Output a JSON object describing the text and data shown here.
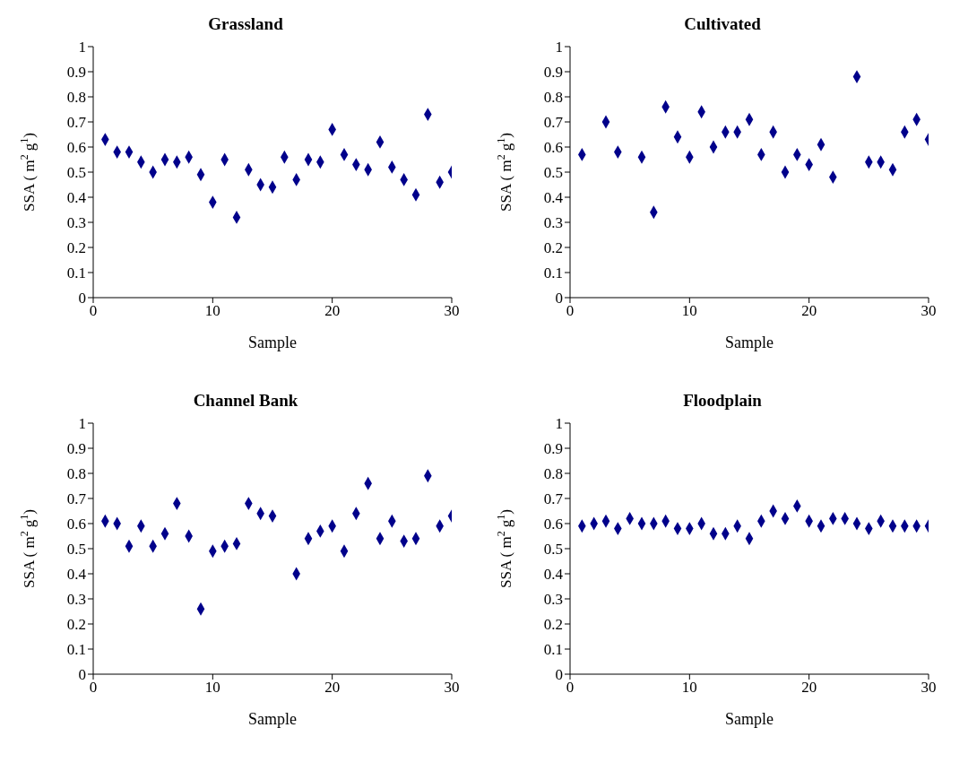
{
  "chart_data": [
    {
      "type": "scatter",
      "title": "Grassland",
      "xlabel": "Sample",
      "ylabel": "SSA ( m$^{2}$ g$^{1}$)",
      "color": "#00008b",
      "marker": "diamond",
      "x": [
        1,
        2,
        3,
        4,
        5,
        6,
        7,
        8,
        9,
        10,
        11,
        12,
        13,
        14,
        15,
        16,
        17,
        18,
        19,
        20,
        21,
        22,
        23,
        24,
        25,
        26,
        27,
        28,
        29,
        30
      ],
      "values": [
        0.63,
        0.58,
        0.58,
        0.54,
        0.5,
        0.55,
        0.54,
        0.56,
        0.49,
        0.38,
        0.55,
        0.32,
        0.51,
        0.45,
        0.44,
        0.56,
        0.47,
        0.55,
        0.54,
        0.67,
        0.57,
        0.53,
        0.51,
        0.62,
        0.52,
        0.47,
        0.41,
        0.73,
        0.46,
        0.5
      ],
      "xlim": [
        0,
        30
      ],
      "xticks": [
        0,
        10,
        20,
        30
      ],
      "ylim": [
        0,
        1
      ],
      "yticks": [
        0,
        0.1,
        0.2,
        0.3,
        0.4,
        0.5,
        0.6,
        0.7,
        0.8,
        0.9,
        1
      ]
    },
    {
      "type": "scatter",
      "title": "Cultivated",
      "xlabel": "Sample",
      "ylabel": "SSA ( m$^{2}$ g$^{1}$)",
      "color": "#00008b",
      "marker": "diamond",
      "x": [
        1,
        3,
        4,
        6,
        7,
        8,
        9,
        10,
        11,
        12,
        13,
        14,
        15,
        16,
        17,
        18,
        19,
        20,
        21,
        22,
        24,
        25,
        26,
        27,
        28,
        29,
        30
      ],
      "values": [
        0.57,
        0.7,
        0.58,
        0.56,
        0.34,
        0.76,
        0.64,
        0.56,
        0.74,
        0.6,
        0.66,
        0.66,
        0.71,
        0.57,
        0.66,
        0.5,
        0.57,
        0.53,
        0.61,
        0.48,
        0.88,
        0.54,
        0.54,
        0.51,
        0.66,
        0.71,
        0.63
      ],
      "xlim": [
        0,
        30
      ],
      "xticks": [
        0,
        10,
        20,
        30
      ],
      "ylim": [
        0,
        1
      ],
      "yticks": [
        0,
        0.1,
        0.2,
        0.3,
        0.4,
        0.5,
        0.6,
        0.7,
        0.8,
        0.9,
        1
      ]
    },
    {
      "type": "scatter",
      "title": "Channel Bank",
      "xlabel": "Sample",
      "ylabel": "SSA ( m$^{2}$ g$^{1}$)",
      "color": "#00008b",
      "marker": "diamond",
      "x": [
        1,
        2,
        3,
        4,
        5,
        6,
        7,
        8,
        9,
        10,
        11,
        12,
        13,
        14,
        15,
        17,
        18,
        19,
        20,
        21,
        22,
        23,
        24,
        25,
        26,
        27,
        28,
        29,
        30
      ],
      "values": [
        0.61,
        0.6,
        0.51,
        0.59,
        0.51,
        0.56,
        0.68,
        0.55,
        0.26,
        0.49,
        0.51,
        0.52,
        0.68,
        0.64,
        0.63,
        0.4,
        0.54,
        0.57,
        0.59,
        0.49,
        0.64,
        0.76,
        0.54,
        0.61,
        0.53,
        0.54,
        0.79,
        0.59,
        0.63
      ],
      "xlim": [
        0,
        30
      ],
      "xticks": [
        0,
        10,
        20,
        30
      ],
      "ylim": [
        0,
        1
      ],
      "yticks": [
        0,
        0.1,
        0.2,
        0.3,
        0.4,
        0.5,
        0.6,
        0.7,
        0.8,
        0.9,
        1
      ]
    },
    {
      "type": "scatter",
      "title": "Floodplain",
      "xlabel": "Sample",
      "ylabel": "SSA ( m$^{2}$ g$^{1}$)",
      "color": "#00008b",
      "marker": "diamond",
      "x": [
        1,
        2,
        3,
        4,
        5,
        6,
        7,
        8,
        9,
        10,
        11,
        12,
        13,
        14,
        15,
        16,
        17,
        18,
        19,
        20,
        21,
        22,
        23,
        24,
        25,
        26,
        27,
        28,
        29,
        30
      ],
      "values": [
        0.59,
        0.6,
        0.61,
        0.58,
        0.62,
        0.6,
        0.6,
        0.61,
        0.58,
        0.58,
        0.6,
        0.56,
        0.56,
        0.59,
        0.54,
        0.61,
        0.65,
        0.62,
        0.67,
        0.61,
        0.59,
        0.62,
        0.62,
        0.6,
        0.58,
        0.61,
        0.59,
        0.59,
        0.59,
        0.59
      ],
      "xlim": [
        0,
        30
      ],
      "xticks": [
        0,
        10,
        20,
        30
      ],
      "ylim": [
        0,
        1
      ],
      "yticks": [
        0,
        0.1,
        0.2,
        0.3,
        0.4,
        0.5,
        0.6,
        0.7,
        0.8,
        0.9,
        1
      ]
    }
  ]
}
